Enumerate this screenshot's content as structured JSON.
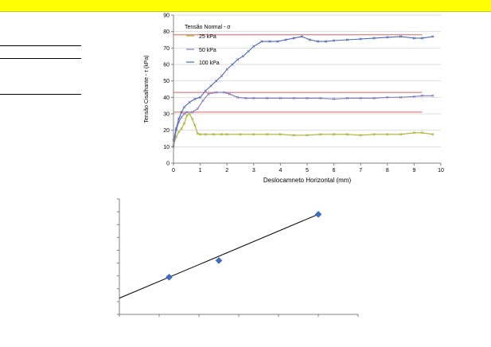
{
  "chart_data": [
    {
      "type": "line",
      "title": "",
      "xlabel": "Deslocamneto Horizontal (mm)",
      "ylabel": "Tensão Cisalhante - τ (kPa)",
      "xlim": [
        0,
        10
      ],
      "ylim": [
        0,
        90
      ],
      "x_ticks": [
        "0",
        "1",
        "2",
        "3",
        "4",
        "5",
        "6",
        "7",
        "8",
        "9",
        "10"
      ],
      "y_ticks": [
        "0",
        "10",
        "20",
        "30",
        "40",
        "50",
        "60",
        "70",
        "80",
        "90"
      ],
      "grid": "horizontal",
      "legend_title": "Tensão Normal - σ",
      "legend_position": "top-left",
      "series": [
        {
          "name": "25 kPa",
          "color": "#a8b22c",
          "x": [
            0,
            0.1,
            0.2,
            0.3,
            0.4,
            0.5,
            0.6,
            0.7,
            0.8,
            0.9,
            1.0,
            1.2,
            1.5,
            1.8,
            2.0,
            2.5,
            3.0,
            3.5,
            4.0,
            4.5,
            5.0,
            5.5,
            6.0,
            6.5,
            7.0,
            7.5,
            8.0,
            8.5,
            9.0,
            9.3,
            9.7
          ],
          "y": [
            11,
            16,
            19,
            21,
            24,
            29,
            30,
            27,
            23,
            18,
            17.5,
            17.5,
            17.5,
            17.5,
            17.5,
            17.5,
            17.5,
            17.5,
            17.5,
            17,
            17,
            17.5,
            17.5,
            17.5,
            17,
            17.5,
            17.5,
            17.5,
            18.5,
            18.5,
            17.5
          ]
        },
        {
          "name": "50 kPa",
          "color": "#7b7bc4",
          "x": [
            0,
            0.1,
            0.2,
            0.3,
            0.4,
            0.5,
            0.7,
            0.9,
            1.1,
            1.3,
            1.6,
            1.9,
            2.1,
            2.4,
            2.7,
            3.0,
            3.5,
            4.0,
            4.5,
            5.0,
            5.5,
            6.0,
            6.5,
            7.0,
            7.5,
            8.0,
            8.5,
            9.0,
            9.3,
            9.7
          ],
          "y": [
            10,
            20,
            25,
            28,
            30,
            31,
            31,
            33,
            38,
            42,
            43,
            43,
            42,
            40,
            39.5,
            39.5,
            39.5,
            39.5,
            39.5,
            39.5,
            39.5,
            39,
            39.5,
            39.5,
            39.5,
            40,
            40,
            40.5,
            41,
            41
          ]
        },
        {
          "name": "100 kPa",
          "color": "#4a68b6",
          "x": [
            0,
            0.1,
            0.2,
            0.3,
            0.4,
            0.6,
            0.8,
            1.0,
            1.2,
            1.4,
            1.6,
            1.8,
            2.0,
            2.2,
            2.4,
            2.6,
            2.8,
            3.0,
            3.3,
            3.6,
            3.9,
            4.2,
            4.5,
            4.8,
            5.1,
            5.4,
            5.7,
            6.0,
            6.5,
            7.0,
            7.5,
            8.0,
            8.5,
            9.0,
            9.3,
            9.7
          ],
          "y": [
            14,
            21,
            27,
            31,
            34,
            37,
            39,
            40,
            44,
            47,
            50,
            53,
            57,
            60,
            63,
            65,
            68,
            71,
            74,
            74,
            74,
            75,
            76,
            77,
            75,
            74,
            74,
            74.5,
            75,
            75.5,
            76,
            76.5,
            77,
            76,
            76,
            77
          ]
        }
      ],
      "reference_lines": [
        {
          "y": 78,
          "color": "#e06060"
        },
        {
          "y": 43,
          "color": "#e06060"
        },
        {
          "y": 31,
          "color": "#e06060"
        }
      ]
    },
    {
      "type": "scatter",
      "title": "",
      "xlabel": "",
      "ylabel": "",
      "xlim": [
        0,
        120
      ],
      "ylim": [
        0,
        90
      ],
      "grid": "none",
      "points": {
        "color": "#3a6fc4",
        "x": [
          25,
          50,
          100
        ],
        "y": [
          29,
          42,
          78
        ]
      },
      "trendline": {
        "color": "#000000",
        "x": [
          0,
          100
        ],
        "y": [
          12.65,
          78.05
        ]
      }
    }
  ]
}
